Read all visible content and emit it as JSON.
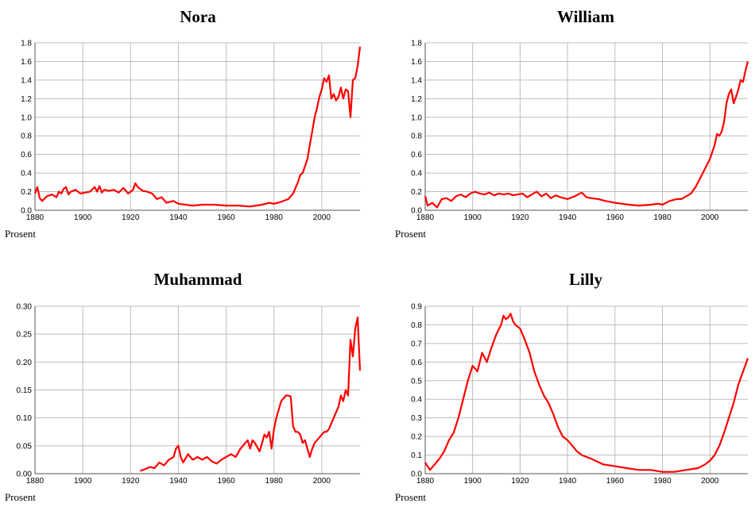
{
  "chart_data": [
    {
      "type": "line",
      "title": "Nora",
      "ylabel": "Prosent",
      "xlim": [
        1880,
        2016
      ],
      "ylim": [
        0,
        1.8
      ],
      "xticks": [
        "1880",
        "1900",
        "1920",
        "1940",
        "1960",
        "1980",
        "2000"
      ],
      "yticks": [
        "0.0",
        "0.2",
        "0.4",
        "0.6",
        "0.8",
        "1.0",
        "1.2",
        "1.4",
        "1.6",
        "1.8"
      ],
      "grid": true,
      "color": "#ff0000",
      "series": [
        {
          "x": [
            1880,
            1881,
            1882,
            1883,
            1885,
            1887,
            1889,
            1890,
            1891,
            1892,
            1893,
            1894,
            1895,
            1897,
            1899,
            1901,
            1903,
            1905,
            1906,
            1907,
            1908,
            1909,
            1911,
            1913,
            1915,
            1917,
            1919,
            1921,
            1922,
            1923,
            1925,
            1927,
            1929,
            1931,
            1933,
            1935,
            1938,
            1940,
            1943,
            1946,
            1950,
            1955,
            1960,
            1965,
            1970,
            1975,
            1978,
            1980,
            1983,
            1986,
            1988,
            1990,
            1991,
            1992,
            1994,
            1995,
            1996,
            1997,
            1998,
            1999,
            2000,
            2001,
            2002,
            2003,
            2004,
            2005,
            2006,
            2007,
            2008,
            2009,
            2010,
            2011,
            2012,
            2013,
            2014,
            2015,
            2016
          ],
          "y": [
            0.18,
            0.25,
            0.13,
            0.1,
            0.15,
            0.17,
            0.14,
            0.2,
            0.18,
            0.23,
            0.25,
            0.17,
            0.2,
            0.22,
            0.18,
            0.19,
            0.2,
            0.25,
            0.2,
            0.26,
            0.19,
            0.22,
            0.21,
            0.22,
            0.19,
            0.24,
            0.18,
            0.22,
            0.29,
            0.25,
            0.21,
            0.2,
            0.18,
            0.12,
            0.14,
            0.08,
            0.1,
            0.07,
            0.06,
            0.05,
            0.06,
            0.06,
            0.05,
            0.05,
            0.04,
            0.06,
            0.08,
            0.07,
            0.09,
            0.12,
            0.18,
            0.3,
            0.38,
            0.4,
            0.55,
            0.7,
            0.85,
            1.0,
            1.1,
            1.22,
            1.3,
            1.42,
            1.38,
            1.45,
            1.2,
            1.25,
            1.18,
            1.22,
            1.32,
            1.2,
            1.3,
            1.28,
            1.0,
            1.4,
            1.42,
            1.55,
            1.76
          ]
        }
      ]
    },
    {
      "type": "line",
      "title": "William",
      "ylabel": "Prosent",
      "xlim": [
        1880,
        2016
      ],
      "ylim": [
        0,
        1.8
      ],
      "xticks": [
        "1880",
        "1900",
        "1920",
        "1940",
        "1960",
        "1980",
        "2000"
      ],
      "yticks": [
        "0.0",
        "0.2",
        "0.4",
        "0.6",
        "0.8",
        "1.0",
        "1.2",
        "1.4",
        "1.6",
        "1.8"
      ],
      "grid": true,
      "color": "#ff0000",
      "series": [
        {
          "x": [
            1880,
            1881,
            1883,
            1885,
            1887,
            1889,
            1891,
            1893,
            1895,
            1897,
            1899,
            1901,
            1903,
            1905,
            1907,
            1909,
            1911,
            1913,
            1915,
            1917,
            1919,
            1921,
            1923,
            1925,
            1927,
            1929,
            1931,
            1933,
            1935,
            1937,
            1940,
            1943,
            1946,
            1948,
            1950,
            1953,
            1956,
            1958,
            1960,
            1963,
            1966,
            1970,
            1975,
            1978,
            1980,
            1983,
            1986,
            1988,
            1990,
            1992,
            1994,
            1996,
            1998,
            2000,
            2002,
            2003,
            2004,
            2005,
            2006,
            2007,
            2008,
            2009,
            2010,
            2011,
            2012,
            2013,
            2014,
            2015,
            2016
          ],
          "y": [
            0.15,
            0.05,
            0.08,
            0.03,
            0.12,
            0.13,
            0.1,
            0.15,
            0.17,
            0.14,
            0.18,
            0.2,
            0.18,
            0.17,
            0.19,
            0.16,
            0.18,
            0.17,
            0.18,
            0.16,
            0.17,
            0.18,
            0.14,
            0.17,
            0.2,
            0.15,
            0.18,
            0.13,
            0.16,
            0.14,
            0.12,
            0.15,
            0.19,
            0.14,
            0.13,
            0.12,
            0.1,
            0.09,
            0.08,
            0.07,
            0.06,
            0.05,
            0.06,
            0.07,
            0.06,
            0.1,
            0.12,
            0.12,
            0.15,
            0.18,
            0.25,
            0.35,
            0.45,
            0.55,
            0.7,
            0.82,
            0.8,
            0.85,
            0.95,
            1.15,
            1.25,
            1.3,
            1.15,
            1.22,
            1.3,
            1.4,
            1.38,
            1.5,
            1.6
          ]
        }
      ]
    },
    {
      "type": "line",
      "title": "Muhammad",
      "ylabel": "Prosent",
      "xlim": [
        1880,
        2016
      ],
      "ylim": [
        0,
        0.3
      ],
      "xticks": [
        "1880",
        "1900",
        "1920",
        "1940",
        "1960",
        "1980",
        "2000"
      ],
      "yticks": [
        "0.00",
        "0.05",
        "0.10",
        "0.15",
        "0.20",
        "0.25",
        "0.30"
      ],
      "grid": true,
      "color": "#ff0000",
      "series": [
        {
          "x": [
            1924,
            1926,
            1928,
            1930,
            1932,
            1934,
            1936,
            1938,
            1939,
            1940,
            1941,
            1942,
            1944,
            1946,
            1948,
            1950,
            1952,
            1954,
            1956,
            1958,
            1960,
            1962,
            1964,
            1966,
            1968,
            1969,
            1970,
            1971,
            1972,
            1974,
            1976,
            1977,
            1978,
            1979,
            1980,
            1981,
            1982,
            1983,
            1984,
            1985,
            1986,
            1987,
            1988,
            1989,
            1990,
            1991,
            1992,
            1993,
            1994,
            1995,
            1996,
            1997,
            1998,
            1999,
            2000,
            2001,
            2002,
            2003,
            2004,
            2005,
            2006,
            2007,
            2008,
            2009,
            2010,
            2011,
            2012,
            2013,
            2014,
            2015,
            2016
          ],
          "y": [
            0.005,
            0.008,
            0.012,
            0.01,
            0.02,
            0.015,
            0.025,
            0.03,
            0.045,
            0.05,
            0.03,
            0.02,
            0.035,
            0.025,
            0.03,
            0.025,
            0.03,
            0.022,
            0.018,
            0.025,
            0.03,
            0.035,
            0.03,
            0.045,
            0.055,
            0.06,
            0.045,
            0.06,
            0.055,
            0.04,
            0.07,
            0.065,
            0.075,
            0.045,
            0.08,
            0.1,
            0.115,
            0.13,
            0.135,
            0.14,
            0.14,
            0.138,
            0.085,
            0.075,
            0.075,
            0.07,
            0.055,
            0.06,
            0.045,
            0.03,
            0.045,
            0.055,
            0.06,
            0.065,
            0.07,
            0.075,
            0.075,
            0.08,
            0.09,
            0.1,
            0.11,
            0.12,
            0.14,
            0.13,
            0.15,
            0.14,
            0.24,
            0.21,
            0.26,
            0.28,
            0.185
          ]
        }
      ]
    },
    {
      "type": "line",
      "title": "Lilly",
      "ylabel": "Prosent",
      "xlim": [
        1880,
        2016
      ],
      "ylim": [
        0,
        0.9
      ],
      "xticks": [
        "1880",
        "1900",
        "1920",
        "1940",
        "1960",
        "1980",
        "2000"
      ],
      "yticks": [
        "0.0",
        "0.1",
        "0.2",
        "0.3",
        "0.4",
        "0.5",
        "0.6",
        "0.7",
        "0.8",
        "0.9"
      ],
      "grid": true,
      "color": "#ff0000",
      "series": [
        {
          "x": [
            1880,
            1882,
            1884,
            1886,
            1888,
            1890,
            1892,
            1894,
            1896,
            1898,
            1900,
            1902,
            1904,
            1906,
            1908,
            1910,
            1912,
            1913,
            1914,
            1915,
            1916,
            1917,
            1918,
            1920,
            1922,
            1924,
            1926,
            1928,
            1930,
            1932,
            1934,
            1936,
            1938,
            1940,
            1942,
            1944,
            1946,
            1950,
            1955,
            1960,
            1965,
            1970,
            1975,
            1980,
            1985,
            1990,
            1995,
            1998,
            2000,
            2002,
            2004,
            2006,
            2008,
            2010,
            2012,
            2014,
            2016
          ],
          "y": [
            0.06,
            0.02,
            0.05,
            0.08,
            0.12,
            0.18,
            0.22,
            0.3,
            0.4,
            0.5,
            0.58,
            0.55,
            0.65,
            0.6,
            0.68,
            0.75,
            0.8,
            0.85,
            0.83,
            0.84,
            0.86,
            0.82,
            0.8,
            0.78,
            0.72,
            0.65,
            0.55,
            0.48,
            0.42,
            0.38,
            0.32,
            0.25,
            0.2,
            0.18,
            0.15,
            0.12,
            0.1,
            0.08,
            0.05,
            0.04,
            0.03,
            0.02,
            0.02,
            0.01,
            0.01,
            0.02,
            0.03,
            0.05,
            0.07,
            0.1,
            0.15,
            0.22,
            0.3,
            0.38,
            0.48,
            0.55,
            0.62
          ]
        }
      ]
    }
  ]
}
